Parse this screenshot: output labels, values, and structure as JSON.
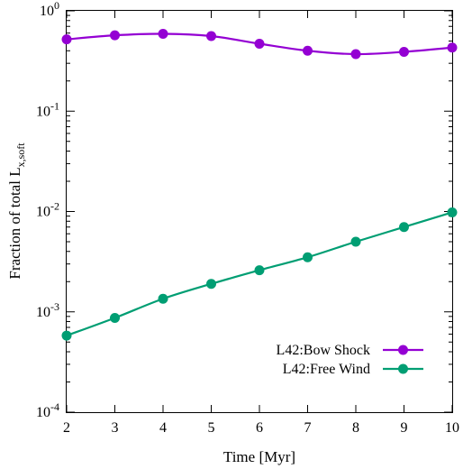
{
  "chart_data": {
    "type": "line",
    "xlabel": "Time [Myr]",
    "ylabel_main": "Fraction of total L",
    "ylabel_sub": "x,soft",
    "x_ticks": [
      "2",
      "3",
      "4",
      "5",
      "6",
      "7",
      "8",
      "9",
      "10"
    ],
    "y_ticks": [
      {
        "base": "10",
        "exp": "-4",
        "value": 0.0001
      },
      {
        "base": "10",
        "exp": "-3",
        "value": 0.001
      },
      {
        "base": "10",
        "exp": "-2",
        "value": 0.01
      },
      {
        "base": "10",
        "exp": "-1",
        "value": 0.1
      },
      {
        "base": "10",
        "exp": "0",
        "value": 1
      }
    ],
    "xlim": [
      2,
      10
    ],
    "ylim": [
      0.0001,
      1
    ],
    "yscale": "log",
    "grid": false,
    "legend_position": "bottom-right",
    "x": [
      2,
      3,
      4,
      5,
      6,
      7,
      8,
      9,
      10
    ],
    "series": [
      {
        "name": "L42:Bow Shock",
        "color": "#9400d3",
        "values": [
          0.52,
          0.57,
          0.59,
          0.56,
          0.47,
          0.4,
          0.37,
          0.39,
          0.43
        ]
      },
      {
        "name": "L42:Free Wind",
        "color": "#009e73",
        "values": [
          0.00058,
          0.00087,
          0.00135,
          0.0019,
          0.0026,
          0.0035,
          0.005,
          0.007,
          0.0098
        ]
      }
    ]
  }
}
